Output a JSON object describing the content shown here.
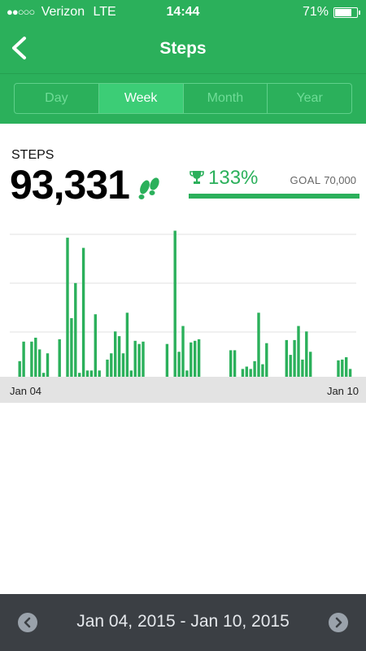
{
  "status": {
    "carrier": "Verizon",
    "network": "LTE",
    "time": "14:44",
    "battery": "71%",
    "battery_level": 0.71
  },
  "nav": {
    "title": "Steps"
  },
  "tabs": [
    {
      "label": "Day",
      "active": false
    },
    {
      "label": "Week",
      "active": true
    },
    {
      "label": "Month",
      "active": false
    },
    {
      "label": "Year",
      "active": false
    }
  ],
  "summary": {
    "label": "STEPS",
    "value": "93,331",
    "percent": "133%",
    "goal_label": "GOAL",
    "goal_value": "70,000",
    "goal_progress": 1.0
  },
  "chart_data": {
    "type": "bar",
    "xlabel_start": "Jan 04",
    "xlabel_end": "Jan 10",
    "values": [
      0,
      0,
      20,
      45,
      0,
      45,
      50,
      35,
      5,
      30,
      0,
      0,
      48,
      0,
      178,
      75,
      120,
      5,
      165,
      8,
      8,
      80,
      8,
      0,
      22,
      30,
      58,
      52,
      30,
      82,
      8,
      46,
      42,
      45,
      0,
      0,
      0,
      0,
      0,
      42,
      0,
      187,
      32,
      65,
      8,
      44,
      46,
      48,
      0,
      0,
      0,
      0,
      0,
      0,
      0,
      34,
      34,
      0,
      10,
      13,
      10,
      20,
      82,
      16,
      43,
      0,
      0,
      0,
      0,
      47,
      28,
      47,
      65,
      22,
      58,
      32,
      0,
      0,
      0,
      0,
      0,
      0,
      21,
      22,
      25,
      10,
      0
    ],
    "ymax": 200,
    "gridlines": 3,
    "color": "#2bb05b"
  },
  "footer": {
    "range": "Jan 04, 2015 - Jan 10, 2015"
  },
  "colors": {
    "accent": "#2bb05b",
    "footer_bg": "#3b3f44"
  }
}
